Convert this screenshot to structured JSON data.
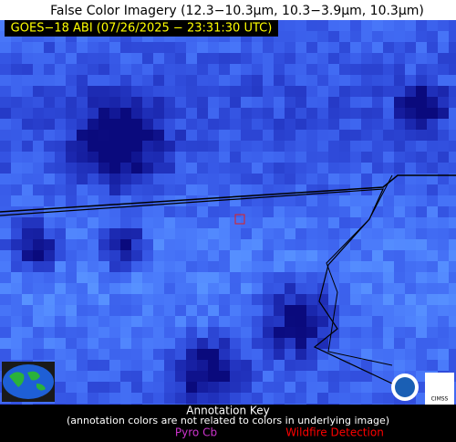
{
  "header": {
    "title": "False Color Imagery (12.3−10.3µm, 10.3−3.9µm, 10.3µm)",
    "timestamp": "GOES−18 ABI (07/26/2025 − 23:31:30 UTC)"
  },
  "annotation_key": {
    "title": "Annotation Key",
    "note": "(annotation colors are not related to colors in underlying image)",
    "items": [
      {
        "label": "Pyro Cb",
        "color": "#cc33cc"
      },
      {
        "label": "Wildfire Detection",
        "color": "#ff0000"
      }
    ]
  },
  "logos": {
    "right": "CIMSS"
  }
}
